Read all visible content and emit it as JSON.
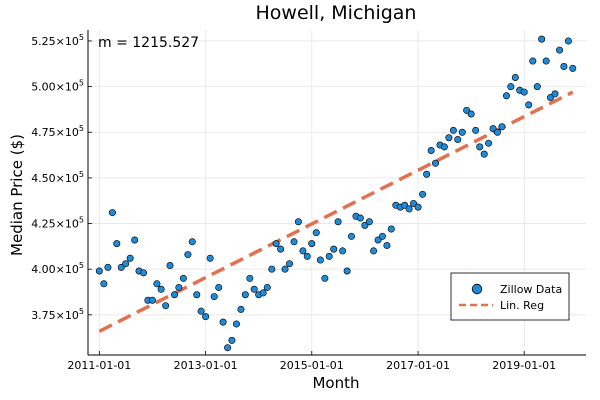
{
  "chart_data": {
    "type": "scatter",
    "title": "Howell, Michigan",
    "xlabel": "Month",
    "ylabel": "Median Price ($)",
    "annotation": "m = 1215.527",
    "x_ticks": [
      "2011-01-01",
      "2013-01-01",
      "2015-01-01",
      "2017-01-01",
      "2019-01-01"
    ],
    "y_ticks": [
      {
        "mantissa": "3.75",
        "exp": "5",
        "value": 375000
      },
      {
        "mantissa": "4.00",
        "exp": "5",
        "value": 400000
      },
      {
        "mantissa": "4.25",
        "exp": "5",
        "value": 425000
      },
      {
        "mantissa": "4.50",
        "exp": "5",
        "value": 450000
      },
      {
        "mantissa": "4.75",
        "exp": "5",
        "value": 475000
      },
      {
        "mantissa": "5.00",
        "exp": "5",
        "value": 500000
      },
      {
        "mantissa": "5.25",
        "exp": "5",
        "value": 525000
      }
    ],
    "xlim": [
      "2010-10-15",
      "2020-03-01"
    ],
    "ylim": [
      353000,
      531000
    ],
    "grid": true,
    "legend_position": "bottom-right",
    "series": [
      {
        "name": "Zillow Data",
        "type": "scatter",
        "color": "#1f8ad8",
        "x": [
          "2011-01",
          "2011-02",
          "2011-03",
          "2011-04",
          "2011-05",
          "2011-06",
          "2011-07",
          "2011-08",
          "2011-09",
          "2011-10",
          "2011-11",
          "2011-12",
          "2012-01",
          "2012-02",
          "2012-03",
          "2012-04",
          "2012-05",
          "2012-06",
          "2012-07",
          "2012-08",
          "2012-09",
          "2012-10",
          "2012-11",
          "2012-12",
          "2013-01",
          "2013-02",
          "2013-03",
          "2013-04",
          "2013-05",
          "2013-06",
          "2013-07",
          "2013-08",
          "2013-09",
          "2013-10",
          "2013-11",
          "2013-12",
          "2014-01",
          "2014-02",
          "2014-03",
          "2014-04",
          "2014-05",
          "2014-06",
          "2014-07",
          "2014-08",
          "2014-09",
          "2014-10",
          "2014-11",
          "2014-12",
          "2015-01",
          "2015-02",
          "2015-03",
          "2015-04",
          "2015-05",
          "2015-06",
          "2015-07",
          "2015-08",
          "2015-09",
          "2015-10",
          "2015-11",
          "2015-12",
          "2016-01",
          "2016-02",
          "2016-03",
          "2016-04",
          "2016-05",
          "2016-06",
          "2016-07",
          "2016-08",
          "2016-09",
          "2016-10",
          "2016-11",
          "2016-12",
          "2017-01",
          "2017-02",
          "2017-03",
          "2017-04",
          "2017-05",
          "2017-06",
          "2017-07",
          "2017-08",
          "2017-09",
          "2017-10",
          "2017-11",
          "2017-12",
          "2018-01",
          "2018-02",
          "2018-03",
          "2018-04",
          "2018-05",
          "2018-06",
          "2018-07",
          "2018-08",
          "2018-09",
          "2018-10",
          "2018-11",
          "2018-12",
          "2019-01",
          "2019-02",
          "2019-03",
          "2019-04",
          "2019-05",
          "2019-06",
          "2019-07",
          "2019-08",
          "2019-09",
          "2019-10",
          "2019-11",
          "2019-12"
        ],
        "y": [
          399000,
          392000,
          401000,
          431000,
          414000,
          401000,
          403000,
          406000,
          416000,
          399000,
          398000,
          383000,
          383000,
          392000,
          389000,
          380000,
          402000,
          386000,
          390000,
          395000,
          408000,
          415000,
          386000,
          377000,
          374000,
          406000,
          385000,
          390000,
          371000,
          357000,
          361000,
          370000,
          378000,
          386000,
          395000,
          389000,
          386000,
          387000,
          390000,
          400000,
          414000,
          411000,
          400000,
          403000,
          415000,
          426000,
          410000,
          407000,
          414000,
          420000,
          405000,
          395000,
          407000,
          411000,
          426000,
          410000,
          399000,
          418000,
          429000,
          428000,
          424000,
          426000,
          410000,
          416000,
          418000,
          413000,
          422000,
          435000,
          434000,
          435000,
          433000,
          436000,
          434000,
          441000,
          452000,
          465000,
          458000,
          468000,
          467000,
          472000,
          476000,
          471000,
          475000,
          487000,
          485000,
          476000,
          467000,
          463000,
          469000,
          477000,
          475000,
          478000,
          495000,
          500000,
          505000,
          498000,
          497000,
          490000,
          514000,
          500000,
          526000,
          514000,
          494000,
          496000,
          520000,
          511000,
          525000,
          510000
        ]
      },
      {
        "name": "Lin. Reg",
        "type": "line",
        "dash": true,
        "color": "#e2714f",
        "x": [
          "2011-01",
          "2019-12"
        ],
        "y": [
          366000,
          497000
        ]
      }
    ]
  }
}
